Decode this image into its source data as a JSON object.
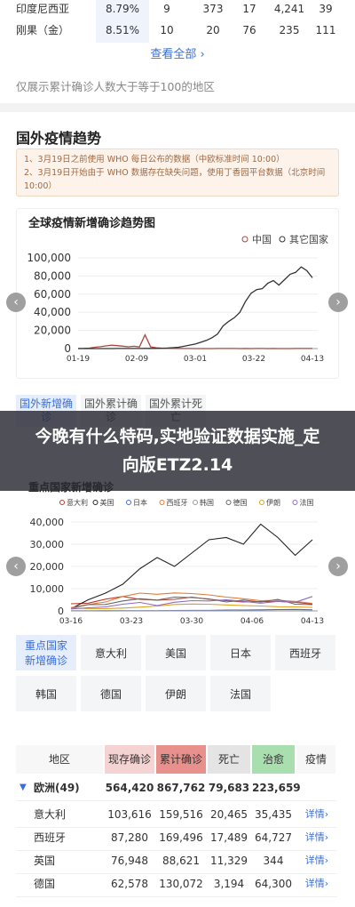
{
  "top_rows": [
    [
      "印度尼西亚",
      "8.79%",
      "9",
      "373",
      "17",
      "4,241",
      "39"
    ],
    [
      "刚果（金）",
      "8.51%",
      "10",
      "20",
      "76",
      "235",
      "111"
    ]
  ],
  "view_all": "查看全部",
  "footnote": "仅展示累计确诊人数大于等于100的地区",
  "section_title": "国外疫情趋势",
  "notes": [
    "1、3月19日之前使用 WHO 每日公布的数据（中欧标准时间 10:00）",
    "2、3月19日开始由于 WHO 数据存在缺失问题，使用丁香园平台数据（北京时间 10:00）"
  ],
  "charts": [
    {
      "type": "line",
      "title": "全球疫情新增确诊趋势图",
      "xticks": [
        "01-19",
        "02-09",
        "03-01",
        "03-22",
        "04-13"
      ],
      "ylim": [
        0,
        100000
      ],
      "yticks": [
        0,
        {
          "value": 20000,
          "label": "20,000"
        },
        {
          "value": 40000,
          "label": "40,000"
        },
        {
          "value": 60000,
          "label": "60,000"
        },
        {
          "value": 80000,
          "label": "80,000"
        },
        {
          "value": 100000,
          "label": "100,000"
        }
      ],
      "series": [
        {
          "name": "中国",
          "color": "#a8473c",
          "values": [
            50,
            150,
            450,
            1500,
            2100,
            2900,
            3800,
            3200,
            2600,
            2000,
            2500,
            1800,
            15150,
            2000,
            900,
            500,
            400,
            300,
            200,
            100,
            60,
            40,
            30,
            20,
            40,
            60,
            60,
            80,
            50,
            40,
            50,
            30,
            70,
            50,
            30,
            60,
            40,
            30,
            40,
            60,
            50,
            80,
            100
          ]
        },
        {
          "name": "其它国家",
          "color": "#333333",
          "values": [
            0,
            0,
            0,
            10,
            20,
            30,
            40,
            50,
            60,
            80,
            100,
            120,
            150,
            200,
            300,
            400,
            600,
            1000,
            1500,
            2500,
            3800,
            5000,
            7000,
            9000,
            12000,
            16000,
            25000,
            30000,
            34000,
            40000,
            52000,
            61000,
            65000,
            66000,
            72000,
            75000,
            70000,
            76000,
            82000,
            84000,
            90000,
            86000,
            78000
          ]
        }
      ]
    },
    {
      "type": "line",
      "title": "重点国家新增确诊",
      "xticks": [
        "03-16",
        "03-23",
        "03-30",
        "04-06",
        "04-13"
      ],
      "ylim": [
        0,
        40000
      ],
      "yticks": [
        0,
        {
          "value": 10000,
          "label": "10,000"
        },
        {
          "value": 20000,
          "label": "20,000"
        },
        {
          "value": 30000,
          "label": "30,000"
        },
        {
          "value": 40000,
          "label": "40,000"
        }
      ],
      "series": [
        {
          "name": "意大利",
          "color": "#c0392b",
          "values": [
            3200,
            3500,
            5300,
            6500,
            5200,
            4800,
            5200,
            6200,
            5200,
            4600,
            4000,
            4200,
            4300,
            3900,
            3100
          ]
        },
        {
          "name": "美国",
          "color": "#222222",
          "values": [
            1000,
            5000,
            8000,
            12000,
            19000,
            24000,
            20000,
            26000,
            32000,
            33000,
            30000,
            39000,
            33000,
            25000,
            32000
          ]
        },
        {
          "name": "日本",
          "color": "#3a6fd8",
          "values": [
            40,
            50,
            40,
            60,
            70,
            100,
            200,
            220,
            250,
            350,
            400,
            500,
            600,
            700,
            500
          ]
        },
        {
          "name": "西班牙",
          "color": "#e07b39",
          "values": [
            1500,
            2900,
            4000,
            6500,
            8000,
            7500,
            8100,
            7800,
            7200,
            6200,
            5500,
            4600,
            4800,
            4300,
            3400
          ]
        },
        {
          "name": "韩国",
          "color": "#999999",
          "values": [
            80,
            90,
            150,
            100,
            80,
            100,
            90,
            100,
            80,
            70,
            60,
            50,
            40,
            30,
            25
          ]
        },
        {
          "name": "德国",
          "color": "#666666",
          "values": [
            1200,
            2800,
            2900,
            4500,
            5500,
            4900,
            6200,
            6000,
            5400,
            4000,
            4900,
            4000,
            5200,
            3000,
            2800
          ]
        },
        {
          "name": "伊朗",
          "color": "#e0a020",
          "values": [
            1200,
            1100,
            1000,
            1300,
            1700,
            2200,
            2900,
            3100,
            3000,
            2700,
            2400,
            2200,
            1900,
            1800,
            1600
          ]
        },
        {
          "name": "法国",
          "color": "#8e6bbf",
          "values": [
            900,
            1400,
            1800,
            3000,
            3800,
            2400,
            3900,
            4600,
            4500,
            5000,
            4300,
            3500,
            4300,
            3900,
            6500
          ]
        }
      ]
    }
  ],
  "tabs": [
    "国外新增确诊",
    "国外累计确诊",
    "国外累计死亡"
  ],
  "banner": "今晚有什么特码,实地验证数据实施_定向版ETZ2.14",
  "country_buttons": [
    "重点国家新增确诊",
    "意大利",
    "美国",
    "日本",
    "西班牙",
    "韩国",
    "德国",
    "伊朗",
    "法国"
  ],
  "table": {
    "headers": [
      "地区",
      "现存确诊",
      "累计确诊",
      "死亡",
      "治愈",
      "疫情"
    ],
    "rows": [
      [
        "欧洲(49)",
        "564,420",
        "867,762",
        "79,683",
        "223,659"
      ],
      [
        "意大利",
        "103,616",
        "159,516",
        "20,465",
        "35,435"
      ],
      [
        "西班牙",
        "87,280",
        "169,496",
        "17,489",
        "64,727"
      ],
      [
        "英国",
        "76,948",
        "88,621",
        "11,329",
        "344"
      ],
      [
        "德国",
        "62,578",
        "130,072",
        "3,194",
        "64,300"
      ]
    ],
    "detail": "详情"
  }
}
